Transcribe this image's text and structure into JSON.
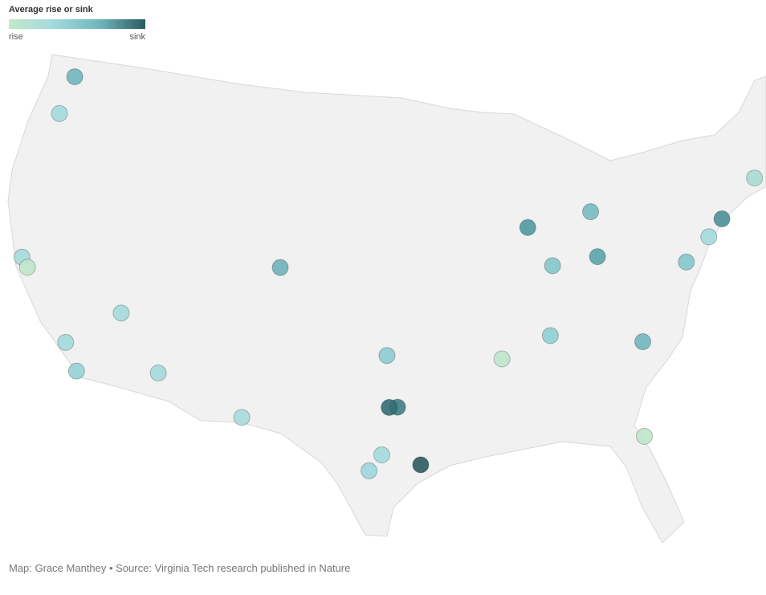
{
  "legend": {
    "title": "Average rise or sink",
    "low_label": "rise",
    "high_label": "sink",
    "colors": [
      "#c3e8cd",
      "#a2dadc",
      "#6fb6bc",
      "#2c5a5f"
    ]
  },
  "points": [
    {
      "lon": -122.33,
      "lat": 47.61,
      "color": "#6fb6bc"
    },
    {
      "lon": -122.68,
      "lat": 45.52,
      "color": "#a3dadd"
    },
    {
      "lon": -122.42,
      "lat": 37.77,
      "color": "#a3dadd"
    },
    {
      "lon": -121.89,
      "lat": 37.34,
      "color": "#bfe6cc"
    },
    {
      "lon": -115.14,
      "lat": 36.17,
      "color": "#a3dadd"
    },
    {
      "lon": -118.24,
      "lat": 34.05,
      "color": "#a3dadd"
    },
    {
      "lon": -117.16,
      "lat": 32.72,
      "color": "#96d2d6"
    },
    {
      "lon": -112.07,
      "lat": 33.45,
      "color": "#a3dadd"
    },
    {
      "lon": -104.99,
      "lat": 39.74,
      "color": "#6db3b9"
    },
    {
      "lon": -106.49,
      "lat": 31.76,
      "color": "#a8dcdb"
    },
    {
      "lon": -97.52,
      "lat": 35.47,
      "color": "#8ccbd0"
    },
    {
      "lon": -96.8,
      "lat": 32.78,
      "color": "#3f7f86"
    },
    {
      "lon": -97.33,
      "lat": 32.76,
      "color": "#336e75"
    },
    {
      "lon": -97.74,
      "lat": 30.27,
      "color": "#a3dadd"
    },
    {
      "lon": -98.49,
      "lat": 29.42,
      "color": "#9cd6da"
    },
    {
      "lon": -95.37,
      "lat": 29.76,
      "color": "#2c5a5f"
    },
    {
      "lon": -90.05,
      "lat": 35.15,
      "color": "#bfe6cc"
    },
    {
      "lon": -87.63,
      "lat": 41.88,
      "color": "#4f9aa1"
    },
    {
      "lon": -83.05,
      "lat": 42.33,
      "color": "#76bcc2"
    },
    {
      "lon": -86.16,
      "lat": 39.77,
      "color": "#84c6cb"
    },
    {
      "lon": -83.0,
      "lat": 39.96,
      "color": "#5aa4ab"
    },
    {
      "lon": -86.78,
      "lat": 36.16,
      "color": "#8fcfd3"
    },
    {
      "lon": -80.84,
      "lat": 35.23,
      "color": "#6fb6bc"
    },
    {
      "lon": -77.04,
      "lat": 38.91,
      "color": "#84c6cb"
    },
    {
      "lon": -75.17,
      "lat": 39.95,
      "color": "#a3dadd"
    },
    {
      "lon": -74.0,
      "lat": 40.71,
      "color": "#4a9097"
    },
    {
      "lon": -71.06,
      "lat": 42.36,
      "color": "#a9dcd2"
    },
    {
      "lon": -81.66,
      "lat": 30.33,
      "color": "#bfe6cc"
    }
  ],
  "footer": "Map: Grace Manthey • Source: Virginia Tech research published in Nature"
}
